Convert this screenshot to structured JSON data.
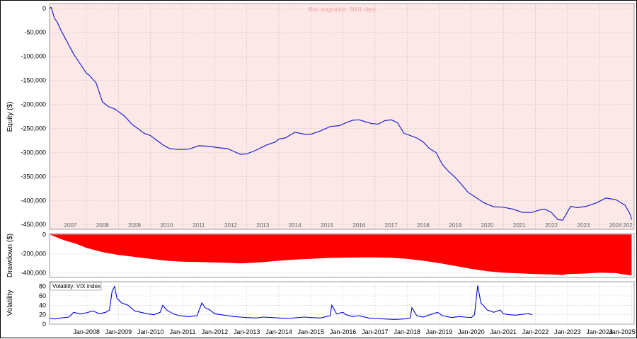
{
  "chart_data": [
    {
      "type": "line",
      "panel": "equity",
      "ylabel": "Equity ($)",
      "annotation": "Max stagnation: 6601 days",
      "ylim": [
        -460000,
        10000
      ],
      "yticks": [
        0,
        -50000,
        -100000,
        -150000,
        -200000,
        -250000,
        -300000,
        -350000,
        -400000,
        -450000
      ],
      "ytick_labels": [
        "0",
        "-50,000",
        "-100,000",
        "-150,000",
        "-200,000",
        "-250,000",
        "-300,000",
        "-350,000",
        "-400,000",
        "-450,000"
      ],
      "year_labels": [
        "2007",
        "2008",
        "2009",
        "2010",
        "2011",
        "2012",
        "2013",
        "2014",
        "2015",
        "2016",
        "2017",
        "2018",
        "2019",
        "2020",
        "2021",
        "2022",
        "2023",
        "2024",
        "202"
      ],
      "grid": true,
      "background": "#fde8e8",
      "line_color": "#2222cc",
      "series": [
        {
          "x": [
            2006.85,
            2006.9,
            2006.95,
            2007.0,
            2007.1,
            2007.2,
            2007.4,
            2007.6,
            2007.8,
            2008.0,
            2008.1,
            2008.3,
            2008.5,
            2008.7,
            2008.9,
            2009.0,
            2009.2,
            2009.4,
            2009.6,
            2009.8,
            2010.0,
            2010.2,
            2010.4,
            2010.6,
            2010.9,
            2011.2,
            2011.5,
            2011.8,
            2012.1,
            2012.4,
            2012.6,
            2012.8,
            2013.0,
            2013.3,
            2013.6,
            2013.9,
            2014.0,
            2014.2,
            2014.5,
            2014.8,
            2015.0,
            2015.3,
            2015.6,
            2015.9,
            2016.1,
            2016.3,
            2016.5,
            2016.7,
            2016.9,
            2017.1,
            2017.3,
            2017.5,
            2017.7,
            2017.9,
            2018.1,
            2018.3,
            2018.5,
            2018.7,
            2018.9,
            2019.1,
            2019.3,
            2019.5,
            2019.7,
            2019.9,
            2020.1,
            2020.4,
            2020.7,
            2021.0,
            2021.3,
            2021.6,
            2021.9,
            2022.1,
            2022.3,
            2022.5,
            2022.7,
            2022.85,
            2022.95,
            2023.1,
            2023.3,
            2023.6,
            2023.9,
            2024.2,
            2024.5,
            2024.8,
            2024.95,
            2025.0
          ],
          "y": [
            0,
            2000,
            -8000,
            -20000,
            -30000,
            -45000,
            -70000,
            -95000,
            -115000,
            -135000,
            -140000,
            -155000,
            -195000,
            -205000,
            -210000,
            -215000,
            -225000,
            -240000,
            -250000,
            -260000,
            -265000,
            -275000,
            -285000,
            -292000,
            -294000,
            -293000,
            -286000,
            -287000,
            -290000,
            -292000,
            -298000,
            -304000,
            -303000,
            -295000,
            -285000,
            -278000,
            -272000,
            -270000,
            -258000,
            -262000,
            -262000,
            -255000,
            -246000,
            -244000,
            -238000,
            -233000,
            -232000,
            -236000,
            -240000,
            -241000,
            -234000,
            -232000,
            -238000,
            -260000,
            -265000,
            -270000,
            -278000,
            -292000,
            -300000,
            -325000,
            -340000,
            -352000,
            -367000,
            -383000,
            -392000,
            -405000,
            -413000,
            -414000,
            -418000,
            -425000,
            -425000,
            -420000,
            -418000,
            -425000,
            -440000,
            -441000,
            -430000,
            -412000,
            -415000,
            -412000,
            -405000,
            -395000,
            -398000,
            -410000,
            -428000,
            -440000
          ]
        }
      ]
    },
    {
      "type": "area",
      "panel": "drawdown",
      "ylabel": "Drawdown ($)",
      "ylim": [
        -450000,
        10000
      ],
      "yticks": [
        0,
        -200000,
        -400000
      ],
      "ytick_labels": [
        "0",
        "-200,000",
        "-400,000"
      ],
      "grid": true,
      "fill_color": "#ff0000",
      "series": [
        {
          "x": [
            2006.85,
            2007.0,
            2007.3,
            2007.7,
            2008.0,
            2008.5,
            2009.0,
            2009.5,
            2010.0,
            2010.5,
            2011.0,
            2011.5,
            2012.0,
            2012.5,
            2012.8,
            2013.0,
            2013.5,
            2014.0,
            2014.5,
            2015.0,
            2015.5,
            2016.0,
            2016.5,
            2017.0,
            2017.5,
            2018.0,
            2018.5,
            2019.0,
            2019.5,
            2020.0,
            2020.5,
            2021.0,
            2021.5,
            2022.0,
            2022.5,
            2022.85,
            2023.0,
            2023.5,
            2024.0,
            2024.5,
            2025.0
          ],
          "y": [
            0,
            -20000,
            -60000,
            -100000,
            -140000,
            -185000,
            -215000,
            -235000,
            -255000,
            -275000,
            -285000,
            -288000,
            -292000,
            -298000,
            -302000,
            -300000,
            -290000,
            -275000,
            -262000,
            -255000,
            -246000,
            -242000,
            -240000,
            -240000,
            -243000,
            -255000,
            -275000,
            -300000,
            -330000,
            -360000,
            -385000,
            -400000,
            -408000,
            -415000,
            -418000,
            -425000,
            -415000,
            -410000,
            -400000,
            -405000,
            -430000
          ]
        }
      ]
    },
    {
      "type": "line",
      "panel": "volatility",
      "title": "Volatility: VIX index",
      "ylabel": "Volatility",
      "ylim": [
        0,
        90
      ],
      "yticks": [
        0,
        20,
        40,
        60,
        80
      ],
      "ytick_labels": [
        "0",
        "20",
        "40",
        "60",
        "80"
      ],
      "grid": true,
      "line_color": "#0000ee",
      "xticks": [
        2008.0,
        2009.0,
        2010.0,
        2011.0,
        2012.0,
        2013.0,
        2014.0,
        2015.0,
        2016.0,
        2017.0,
        2018.0,
        2019.0,
        2020.0,
        2021.0,
        2022.0,
        2023.0,
        2024.0,
        2025.0
      ],
      "xtick_labels": [
        "Jan-2008",
        "Jan-2009",
        "Jan-2010",
        "Jan-2011",
        "Jan-2012",
        "Jan-2013",
        "Jan-2014",
        "Jan-2015",
        "Jan-2016",
        "Jan-2017",
        "Jan-2018",
        "Jan-2019",
        "Jan-2020",
        "Jan-2021",
        "Jan-2022",
        "Jan-2023",
        "Jan-2024",
        "Jan-2025"
      ],
      "series": [
        {
          "x": [
            2006.85,
            2007.0,
            2007.2,
            2007.45,
            2007.6,
            2007.8,
            2008.0,
            2008.2,
            2008.4,
            2008.6,
            2008.72,
            2008.8,
            2008.88,
            2008.95,
            2009.1,
            2009.3,
            2009.5,
            2009.7,
            2009.9,
            2010.1,
            2010.3,
            2010.38,
            2010.5,
            2010.7,
            2010.9,
            2011.2,
            2011.45,
            2011.6,
            2011.7,
            2011.85,
            2012.0,
            2012.2,
            2012.4,
            2012.6,
            2012.8,
            2013.0,
            2013.3,
            2013.5,
            2013.8,
            2014.0,
            2014.3,
            2014.6,
            2014.8,
            2015.0,
            2015.3,
            2015.6,
            2015.65,
            2015.8,
            2016.0,
            2016.1,
            2016.3,
            2016.5,
            2016.8,
            2017.0,
            2017.3,
            2017.6,
            2017.9,
            2018.1,
            2018.15,
            2018.3,
            2018.5,
            2018.8,
            2018.95,
            2019.1,
            2019.4,
            2019.6,
            2019.8,
            2020.0,
            2020.1,
            2020.2,
            2020.3,
            2020.5,
            2020.7,
            2020.9,
            2021.0,
            2021.2,
            2021.4,
            2021.6,
            2021.8,
            2021.9
          ],
          "y": [
            12,
            11,
            13,
            15,
            25,
            22,
            24,
            28,
            22,
            25,
            30,
            70,
            80,
            55,
            45,
            40,
            28,
            25,
            22,
            20,
            25,
            40,
            30,
            22,
            18,
            16,
            18,
            45,
            35,
            30,
            22,
            20,
            18,
            16,
            15,
            14,
            13,
            15,
            14,
            13,
            12,
            14,
            15,
            14,
            13,
            18,
            40,
            22,
            25,
            20,
            16,
            18,
            13,
            12,
            11,
            10,
            11,
            13,
            35,
            18,
            15,
            22,
            25,
            18,
            14,
            16,
            15,
            14,
            20,
            82,
            45,
            30,
            25,
            30,
            22,
            20,
            19,
            21,
            22,
            20
          ]
        }
      ]
    }
  ]
}
